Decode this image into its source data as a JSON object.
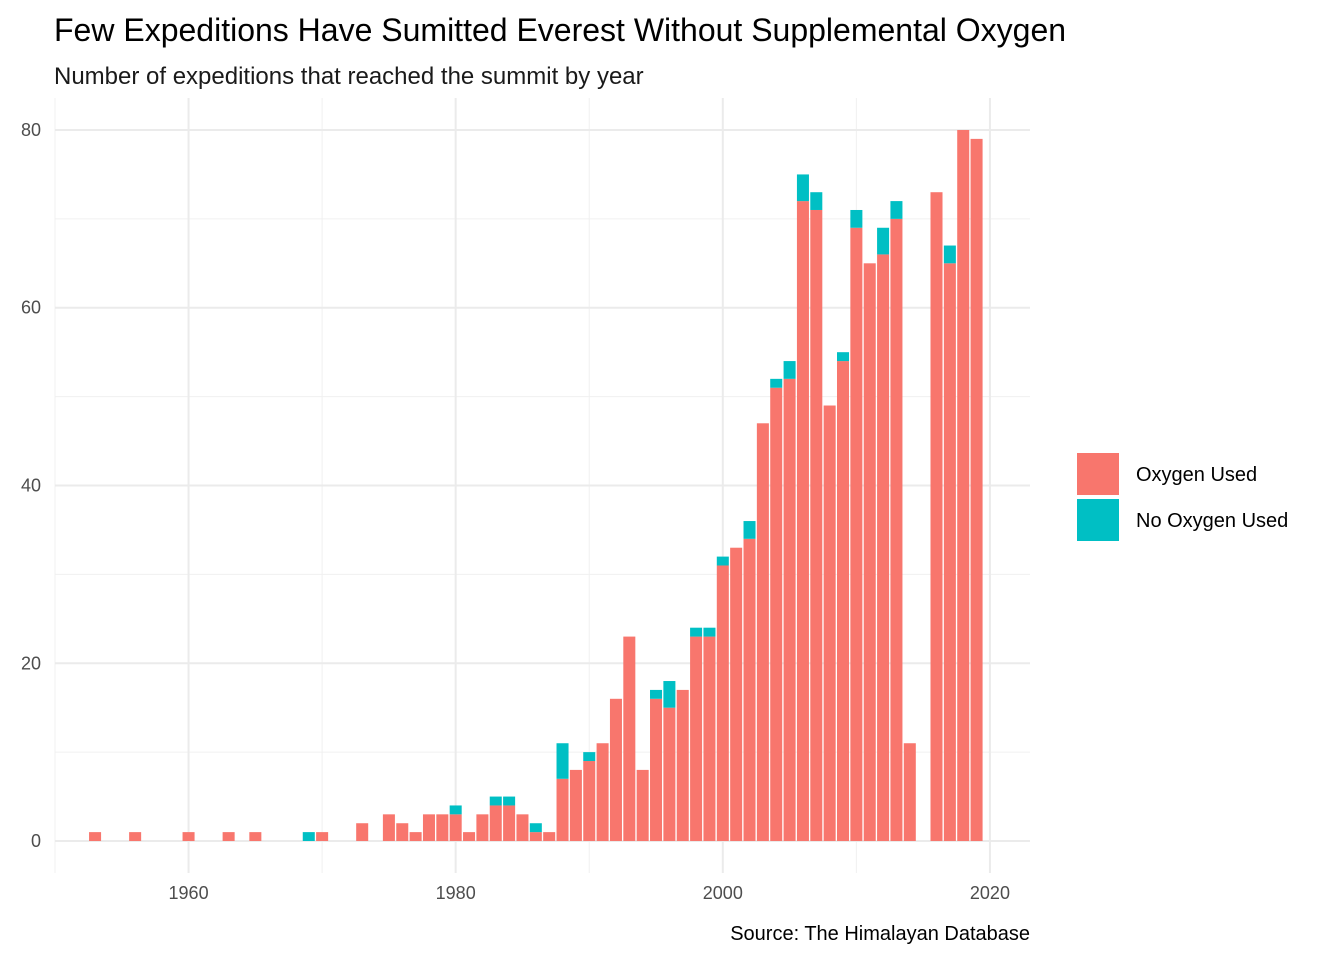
{
  "chart_data": {
    "type": "bar",
    "stacked": true,
    "title": "Few Expeditions Have Sumitted Everest Without Supplemental Oxygen",
    "subtitle": "Number of expeditions that reached the summit by year",
    "caption": "Source: The Himalayan Database",
    "xlabel": "",
    "ylabel": "",
    "xlim": [
      1950,
      2023
    ],
    "ylim": [
      -3.6,
      83.6
    ],
    "x_ticks": [
      1960,
      1980,
      2000,
      2020
    ],
    "y_ticks": [
      0,
      20,
      40,
      60,
      80
    ],
    "grid": true,
    "legend_position": "right",
    "years": [
      1953,
      1956,
      1960,
      1963,
      1965,
      1969,
      1970,
      1973,
      1975,
      1976,
      1977,
      1978,
      1979,
      1980,
      1981,
      1982,
      1983,
      1984,
      1985,
      1986,
      1987,
      1988,
      1989,
      1990,
      1991,
      1992,
      1993,
      1994,
      1995,
      1996,
      1997,
      1998,
      1999,
      2000,
      2001,
      2002,
      2003,
      2004,
      2005,
      2006,
      2007,
      2008,
      2009,
      2010,
      2011,
      2012,
      2013,
      2014,
      2016,
      2017,
      2018,
      2019
    ],
    "series": [
      {
        "name": "Oxygen Used",
        "color": "#F8766D",
        "values": [
          1,
          1,
          1,
          1,
          1,
          0,
          1,
          2,
          3,
          2,
          1,
          3,
          3,
          3,
          1,
          3,
          4,
          4,
          3,
          1,
          1,
          7,
          8,
          9,
          11,
          16,
          23,
          8,
          16,
          15,
          17,
          23,
          23,
          31,
          33,
          34,
          47,
          51,
          52,
          72,
          71,
          49,
          54,
          69,
          65,
          66,
          70,
          11,
          73,
          65,
          80,
          79
        ]
      },
      {
        "name": "No Oxygen Used",
        "color": "#00BFC4",
        "values": [
          0,
          0,
          0,
          0,
          0,
          1,
          0,
          0,
          0,
          0,
          0,
          0,
          0,
          1,
          0,
          0,
          1,
          1,
          0,
          1,
          0,
          4,
          0,
          1,
          0,
          0,
          0,
          0,
          1,
          3,
          0,
          1,
          1,
          1,
          0,
          2,
          0,
          1,
          2,
          3,
          2,
          0,
          1,
          2,
          0,
          3,
          2,
          0,
          0,
          2,
          0,
          0
        ]
      }
    ]
  }
}
